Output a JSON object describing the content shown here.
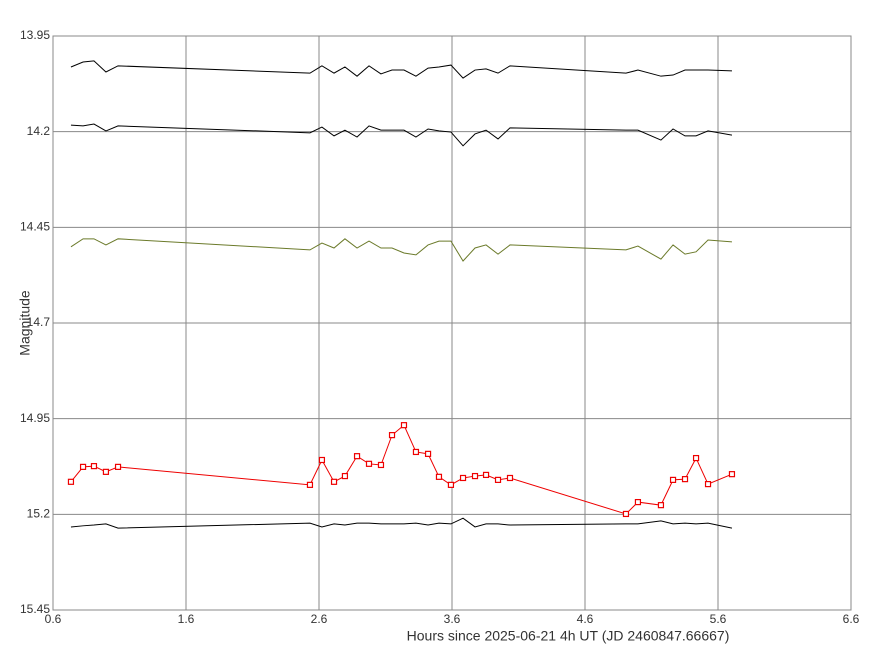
{
  "chart_data": {
    "type": "line",
    "xlabel": "Hours since 2025-06-21 4h UT (JD 2460847.66667)",
    "ylabel": "Magnitude",
    "x": [
      0.735,
      0.826,
      0.908,
      0.998,
      1.089,
      2.532,
      2.622,
      2.713,
      2.795,
      2.886,
      2.976,
      3.066,
      3.149,
      3.239,
      3.329,
      3.42,
      3.502,
      3.592,
      3.683,
      3.773,
      3.856,
      3.946,
      4.036,
      4.908,
      4.998,
      5.171,
      5.262,
      5.352,
      5.435,
      5.525,
      5.705
    ],
    "series": [
      {
        "color": "#000000",
        "values": [
          14.031,
          14.018,
          14.015,
          14.044,
          14.028,
          14.047,
          14.028,
          14.047,
          14.031,
          14.055,
          14.028,
          14.049,
          14.039,
          14.039,
          14.055,
          14.034,
          14.031,
          14.026,
          14.06,
          14.039,
          14.036,
          14.047,
          14.028,
          14.047,
          14.039,
          14.055,
          14.052,
          14.039,
          14.039,
          14.039,
          14.041
        ]
      },
      {
        "color": "#000000",
        "values": [
          14.183,
          14.185,
          14.18,
          14.198,
          14.185,
          14.203,
          14.188,
          14.211,
          14.196,
          14.214,
          14.185,
          14.196,
          14.196,
          14.196,
          14.214,
          14.193,
          14.198,
          14.201,
          14.237,
          14.206,
          14.196,
          14.219,
          14.19,
          14.196,
          14.196,
          14.222,
          14.193,
          14.211,
          14.211,
          14.198,
          14.209
        ]
      },
      {
        "color": "#6b7a2a",
        "values": [
          14.501,
          14.48,
          14.48,
          14.496,
          14.48,
          14.509,
          14.491,
          14.504,
          14.48,
          14.504,
          14.486,
          14.504,
          14.504,
          14.517,
          14.522,
          14.496,
          14.486,
          14.486,
          14.538,
          14.504,
          14.496,
          14.52,
          14.496,
          14.509,
          14.499,
          14.533,
          14.496,
          14.52,
          14.514,
          14.483,
          14.488
        ]
      },
      {
        "color": "#ee0000",
        "marker": "square",
        "values": [
          15.115,
          15.076,
          15.074,
          15.089,
          15.076,
          15.123,
          15.058,
          15.115,
          15.1,
          15.048,
          15.068,
          15.071,
          14.993,
          14.967,
          15.037,
          15.042,
          15.102,
          15.123,
          15.105,
          15.1,
          15.097,
          15.11,
          15.105,
          15.199,
          15.168,
          15.176,
          15.11,
          15.108,
          15.053,
          15.121,
          15.095
        ]
      },
      {
        "color": "#000000",
        "values": [
          15.233,
          15.23,
          15.228,
          15.225,
          15.236,
          15.223,
          15.233,
          15.225,
          15.228,
          15.223,
          15.223,
          15.225,
          15.225,
          15.225,
          15.223,
          15.228,
          15.223,
          15.225,
          15.21,
          15.233,
          15.225,
          15.225,
          15.228,
          15.225,
          15.225,
          15.217,
          15.225,
          15.223,
          15.225,
          15.223,
          15.236
        ]
      }
    ],
    "xlim": [
      0.6,
      6.6
    ],
    "xticks": [
      0.6,
      1.6,
      2.6,
      3.6,
      4.6,
      5.6,
      6.6
    ],
    "ylim": [
      13.95,
      15.45
    ],
    "yticks": [
      13.95,
      14.2,
      14.45,
      14.7,
      14.95,
      15.2,
      15.45
    ],
    "y_inverted": true,
    "grid": true
  }
}
